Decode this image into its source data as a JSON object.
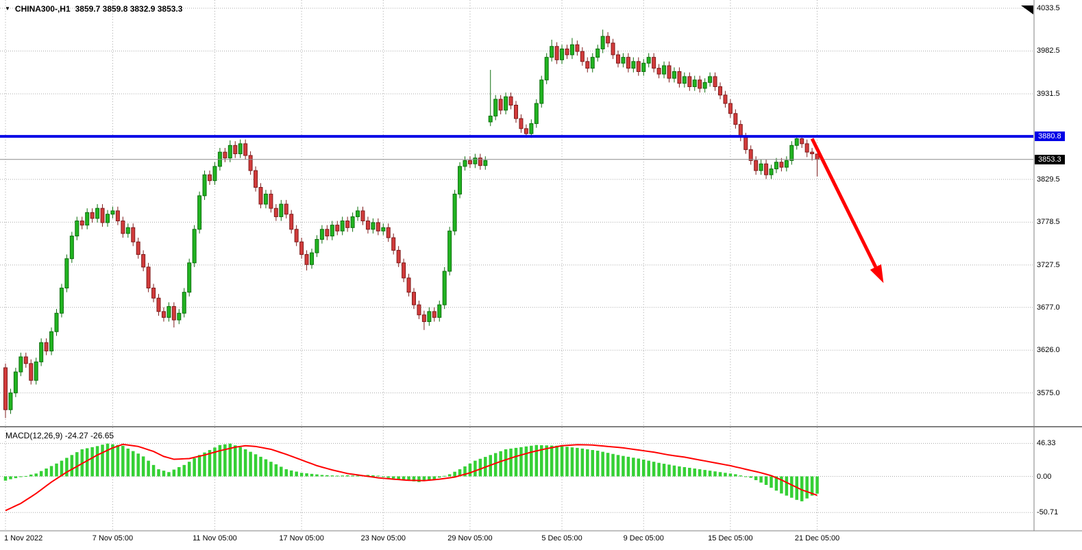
{
  "header": {
    "symbol_timeframe": "CHINA300-,H1",
    "ohlc_text": "3859.7 3859.8 3832.9 3853.3"
  },
  "colors": {
    "bull": "#21B421",
    "bull_border": "#0E6E0E",
    "bear": "#D23B3B",
    "bear_border": "#7E1C1C",
    "macd_hist": "#35D035",
    "macd_signal": "#FF0000",
    "hline": "#0000E6",
    "arrow": "#FF0000",
    "grid": "#A8A8A8",
    "separator": "#808080",
    "axis_text": "#000000"
  },
  "chart_data": {
    "type": "candlestick",
    "title": "CHINA300-,H1",
    "symbol": "CHINA300-",
    "timeframe": "H1",
    "last_ohlc": {
      "open": 3859.7,
      "high": 3859.8,
      "low": 3832.9,
      "close": 3853.3
    },
    "price_axis": [
      {
        "label": "4033.5",
        "value": 4033.5,
        "style": "grid"
      },
      {
        "label": "3982.5",
        "value": 3982.5,
        "style": "grid"
      },
      {
        "label": "3931.5",
        "value": 3931.5,
        "style": "grid"
      },
      {
        "label": "3880.8",
        "value": 3880.8,
        "style": "hline"
      },
      {
        "label": "3853.3",
        "value": 3853.3,
        "style": "bid"
      },
      {
        "label": "3829.5",
        "value": 3829.5,
        "style": "grid"
      },
      {
        "label": "3778.5",
        "value": 3778.5,
        "style": "grid"
      },
      {
        "label": "3727.5",
        "value": 3727.5,
        "style": "grid"
      },
      {
        "label": "3677.0",
        "value": 3677.0,
        "style": "grid"
      },
      {
        "label": "3626.0",
        "value": 3626.0,
        "style": "grid"
      },
      {
        "label": "3575.0",
        "value": 3575.0,
        "style": "grid"
      }
    ],
    "time_axis": [
      {
        "label": "1 Nov 2022",
        "index": 0
      },
      {
        "label": "7 Nov 05:00",
        "index": 21
      },
      {
        "label": "11 Nov 05:00",
        "index": 41
      },
      {
        "label": "17 Nov 05:00",
        "index": 58
      },
      {
        "label": "23 Nov 05:00",
        "index": 74
      },
      {
        "label": "29 Nov 05:00",
        "index": 91
      },
      {
        "label": "5 Dec 05:00",
        "index": 109
      },
      {
        "label": "9 Dec 05:00",
        "index": 125
      },
      {
        "label": "15 Dec 05:00",
        "index": 142
      },
      {
        "label": "21 Dec 05:00",
        "index": 159
      }
    ],
    "hline": {
      "value": 3880.8,
      "width": 4
    },
    "bid_line": {
      "value": 3853.3
    },
    "arrow": {
      "from": {
        "index": 158,
        "price": 3878
      },
      "to": {
        "index": 172,
        "price": 3706
      }
    },
    "candles": [
      [
        3605,
        3610,
        3545,
        3555
      ],
      [
        3555,
        3580,
        3550,
        3575
      ],
      [
        3575,
        3605,
        3570,
        3600
      ],
      [
        3600,
        3623,
        3595,
        3618
      ],
      [
        3618,
        3623,
        3605,
        3610
      ],
      [
        3610,
        3615,
        3585,
        3590
      ],
      [
        3590,
        3617,
        3585,
        3612
      ],
      [
        3612,
        3640,
        3607,
        3635
      ],
      [
        3635,
        3640,
        3620,
        3625
      ],
      [
        3625,
        3653,
        3620,
        3648
      ],
      [
        3648,
        3675,
        3643,
        3670
      ],
      [
        3670,
        3705,
        3665,
        3700
      ],
      [
        3700,
        3740,
        3695,
        3735
      ],
      [
        3735,
        3767,
        3730,
        3762
      ],
      [
        3762,
        3785,
        3757,
        3780
      ],
      [
        3780,
        3785,
        3770,
        3775
      ],
      [
        3775,
        3795,
        3770,
        3790
      ],
      [
        3790,
        3795,
        3778,
        3783
      ],
      [
        3783,
        3800,
        3778,
        3795
      ],
      [
        3795,
        3800,
        3773,
        3778
      ],
      [
        3778,
        3793,
        3773,
        3788
      ],
      [
        3788,
        3797,
        3783,
        3792
      ],
      [
        3792,
        3797,
        3775,
        3780
      ],
      [
        3780,
        3785,
        3760,
        3765
      ],
      [
        3765,
        3777,
        3760,
        3772
      ],
      [
        3772,
        3777,
        3750,
        3755
      ],
      [
        3755,
        3760,
        3735,
        3740
      ],
      [
        3740,
        3745,
        3720,
        3725
      ],
      [
        3725,
        3730,
        3695,
        3700
      ],
      [
        3700,
        3705,
        3683,
        3688
      ],
      [
        3688,
        3693,
        3667,
        3672
      ],
      [
        3672,
        3677,
        3660,
        3665
      ],
      [
        3665,
        3683,
        3660,
        3678
      ],
      [
        3678,
        3683,
        3653,
        3662
      ],
      [
        3662,
        3675,
        3657,
        3670
      ],
      [
        3670,
        3700,
        3665,
        3695
      ],
      [
        3695,
        3735,
        3690,
        3730
      ],
      [
        3730,
        3775,
        3725,
        3770
      ],
      [
        3770,
        3815,
        3765,
        3810
      ],
      [
        3810,
        3840,
        3805,
        3835
      ],
      [
        3835,
        3840,
        3823,
        3828
      ],
      [
        3828,
        3850,
        3823,
        3845
      ],
      [
        3845,
        3867,
        3840,
        3862
      ],
      [
        3862,
        3867,
        3850,
        3855
      ],
      [
        3855,
        3876,
        3850,
        3870
      ],
      [
        3870,
        3875,
        3855,
        3860
      ],
      [
        3860,
        3877,
        3855,
        3872
      ],
      [
        3872,
        3877,
        3853,
        3858
      ],
      [
        3858,
        3863,
        3835,
        3840
      ],
      [
        3840,
        3845,
        3815,
        3820
      ],
      [
        3820,
        3825,
        3795,
        3800
      ],
      [
        3800,
        3817,
        3795,
        3812
      ],
      [
        3812,
        3817,
        3790,
        3795
      ],
      [
        3795,
        3800,
        3780,
        3785
      ],
      [
        3785,
        3805,
        3780,
        3800
      ],
      [
        3800,
        3805,
        3783,
        3788
      ],
      [
        3788,
        3793,
        3765,
        3770
      ],
      [
        3770,
        3775,
        3750,
        3755
      ],
      [
        3755,
        3760,
        3735,
        3740
      ],
      [
        3740,
        3745,
        3721,
        3728
      ],
      [
        3728,
        3747,
        3723,
        3742
      ],
      [
        3742,
        3763,
        3737,
        3758
      ],
      [
        3758,
        3775,
        3753,
        3770
      ],
      [
        3770,
        3775,
        3757,
        3762
      ],
      [
        3762,
        3780,
        3757,
        3775
      ],
      [
        3775,
        3780,
        3763,
        3768
      ],
      [
        3768,
        3785,
        3763,
        3780
      ],
      [
        3780,
        3785,
        3767,
        3772
      ],
      [
        3772,
        3790,
        3767,
        3785
      ],
      [
        3785,
        3797,
        3780,
        3792
      ],
      [
        3792,
        3797,
        3775,
        3780
      ],
      [
        3780,
        3785,
        3765,
        3770
      ],
      [
        3770,
        3783,
        3765,
        3778
      ],
      [
        3778,
        3783,
        3763,
        3768
      ],
      [
        3768,
        3777,
        3763,
        3772
      ],
      [
        3772,
        3777,
        3755,
        3760
      ],
      [
        3760,
        3765,
        3740,
        3745
      ],
      [
        3745,
        3750,
        3725,
        3730
      ],
      [
        3730,
        3735,
        3707,
        3712
      ],
      [
        3712,
        3717,
        3690,
        3695
      ],
      [
        3695,
        3700,
        3675,
        3680
      ],
      [
        3680,
        3685,
        3663,
        3668
      ],
      [
        3668,
        3673,
        3650,
        3660
      ],
      [
        3660,
        3677,
        3655,
        3672
      ],
      [
        3672,
        3677,
        3660,
        3665
      ],
      [
        3665,
        3685,
        3660,
        3680
      ],
      [
        3680,
        3725,
        3675,
        3720
      ],
      [
        3720,
        3773,
        3715,
        3768
      ],
      [
        3768,
        3817,
        3763,
        3812
      ],
      [
        3812,
        3850,
        3807,
        3845
      ],
      [
        3845,
        3857,
        3840,
        3852
      ],
      [
        3852,
        3857,
        3843,
        3848
      ],
      [
        3848,
        3860,
        3843,
        3855
      ],
      [
        3855,
        3860,
        3841,
        3846
      ],
      [
        3846,
        3857,
        3841,
        3852
      ],
      [
        3898,
        3960,
        3893,
        3905
      ],
      [
        3905,
        3930,
        3900,
        3925
      ],
      [
        3925,
        3930,
        3907,
        3912
      ],
      [
        3912,
        3933,
        3907,
        3928
      ],
      [
        3928,
        3933,
        3913,
        3918
      ],
      [
        3918,
        3923,
        3897,
        3902
      ],
      [
        3902,
        3907,
        3885,
        3890
      ],
      [
        3890,
        3895,
        3879,
        3884
      ],
      [
        3884,
        3901,
        3879,
        3896
      ],
      [
        3896,
        3925,
        3891,
        3920
      ],
      [
        3920,
        3953,
        3915,
        3948
      ],
      [
        3948,
        3980,
        3943,
        3975
      ],
      [
        3975,
        3996,
        3970,
        3988
      ],
      [
        3988,
        3993,
        3967,
        3972
      ],
      [
        3972,
        3990,
        3967,
        3985
      ],
      [
        3985,
        3990,
        3973,
        3978
      ],
      [
        3978,
        3998,
        3973,
        3990
      ],
      [
        3990,
        3995,
        3977,
        3982
      ],
      [
        3982,
        3987,
        3965,
        3970
      ],
      [
        3970,
        3975,
        3957,
        3962
      ],
      [
        3962,
        3980,
        3957,
        3975
      ],
      [
        3975,
        3990,
        3970,
        3985
      ],
      [
        3985,
        4008,
        3980,
        4000
      ],
      [
        4000,
        4005,
        3987,
        3992
      ],
      [
        3992,
        3997,
        3973,
        3978
      ],
      [
        3978,
        3983,
        3963,
        3968
      ],
      [
        3968,
        3980,
        3963,
        3975
      ],
      [
        3975,
        3980,
        3957,
        3962
      ],
      [
        3962,
        3975,
        3957,
        3970
      ],
      [
        3970,
        3975,
        3953,
        3958
      ],
      [
        3958,
        3973,
        3953,
        3968
      ],
      [
        3968,
        3980,
        3963,
        3975
      ],
      [
        3975,
        3980,
        3957,
        3962
      ],
      [
        3962,
        3967,
        3950,
        3955
      ],
      [
        3955,
        3970,
        3950,
        3965
      ],
      [
        3965,
        3970,
        3945,
        3950
      ],
      [
        3950,
        3963,
        3945,
        3958
      ],
      [
        3958,
        3963,
        3939,
        3944
      ],
      [
        3944,
        3957,
        3939,
        3952
      ],
      [
        3952,
        3957,
        3935,
        3940
      ],
      [
        3940,
        3953,
        3935,
        3948
      ],
      [
        3948,
        3953,
        3933,
        3938
      ],
      [
        3938,
        3950,
        3933,
        3945
      ],
      [
        3945,
        3957,
        3940,
        3952
      ],
      [
        3952,
        3957,
        3935,
        3940
      ],
      [
        3940,
        3945,
        3925,
        3930
      ],
      [
        3930,
        3935,
        3915,
        3920
      ],
      [
        3920,
        3925,
        3903,
        3908
      ],
      [
        3908,
        3913,
        3890,
        3895
      ],
      [
        3895,
        3900,
        3875,
        3880
      ],
      [
        3880,
        3885,
        3860,
        3865
      ],
      [
        3865,
        3870,
        3847,
        3852
      ],
      [
        3852,
        3857,
        3835,
        3840
      ],
      [
        3840,
        3853,
        3835,
        3848
      ],
      [
        3848,
        3853,
        3830,
        3835
      ],
      [
        3835,
        3847,
        3830,
        3842
      ],
      [
        3842,
        3855,
        3837,
        3850
      ],
      [
        3850,
        3855,
        3839,
        3844
      ],
      [
        3844,
        3857,
        3839,
        3852
      ],
      [
        3852,
        3875,
        3847,
        3870
      ],
      [
        3870,
        3881,
        3865,
        3878
      ],
      [
        3878,
        3881,
        3867,
        3872
      ],
      [
        3872,
        3877,
        3856,
        3862
      ],
      [
        3862,
        3867,
        3852,
        3860
      ],
      [
        3859.7,
        3859.8,
        3832.9,
        3853.3
      ]
    ],
    "macd": {
      "label": "MACD(12,26,9) -24.27 -26.65",
      "fast": 12,
      "slow": 26,
      "signal_period": 9,
      "macd_value": -24.27,
      "signal_value": -26.65,
      "axis": [
        {
          "label": "46.33",
          "value": 46.33
        },
        {
          "label": "0.00",
          "value": 0
        },
        {
          "label": "-50.71",
          "value": -50.71
        }
      ],
      "histogram": [
        -6,
        -4,
        -2.5,
        -1,
        0.5,
        2.5,
        4,
        7.5,
        11,
        14.5,
        18,
        22,
        26,
        30,
        34,
        38,
        39.5,
        41,
        42.5,
        44.5,
        46,
        45,
        44,
        43,
        39,
        35.5,
        32,
        28,
        22,
        16,
        10,
        8,
        6,
        9.5,
        13,
        16,
        20.5,
        25.5,
        30,
        33.5,
        37,
        40.5,
        44,
        45,
        46,
        43.5,
        41,
        38,
        34.5,
        31,
        27.5,
        24,
        20.5,
        17,
        13.5,
        10,
        8.3,
        6.7,
        5,
        4.3,
        3.5,
        2.8,
        2,
        1.7,
        1.3,
        1,
        1.2,
        1.5,
        1.2,
        1,
        1.5,
        2,
        1.5,
        1,
        -0.5,
        -2,
        -3,
        -4,
        -5,
        -6,
        -7,
        -8,
        -6.7,
        -5.3,
        -4,
        -1.7,
        0.7,
        3,
        6.5,
        10,
        14,
        18,
        22,
        24.7,
        27.3,
        30,
        32.7,
        35.3,
        38,
        39,
        40,
        41,
        42,
        43,
        44,
        43.7,
        43.5,
        43.2,
        43,
        42.2,
        41.5,
        40.7,
        40,
        39,
        38,
        37,
        36,
        34.5,
        33,
        31.5,
        30,
        28.7,
        27.5,
        26.2,
        25,
        23.5,
        22,
        20.5,
        19,
        17.7,
        16.5,
        15.2,
        14,
        13,
        12,
        11,
        10,
        9,
        8,
        7,
        6,
        5,
        4,
        3,
        1.3,
        -0.3,
        -2,
        -5.3,
        -8.7,
        -12,
        -16,
        -20,
        -24,
        -27,
        -30,
        -33,
        -35,
        -31,
        -27,
        -24.3
      ],
      "signal": [
        -48,
        -44.7,
        -41.3,
        -38,
        -33.3,
        -28.7,
        -24,
        -18.7,
        -13.3,
        -8,
        -3.3,
        1.3,
        6,
        10,
        14,
        18,
        22,
        26,
        30,
        33.3,
        36.7,
        40,
        42.5,
        45,
        44,
        43,
        42,
        39.7,
        37.3,
        35,
        31.5,
        28,
        26,
        24,
        24.3,
        24.7,
        25,
        26.7,
        28.3,
        30,
        32,
        34,
        36,
        37.7,
        39.3,
        41,
        42,
        43,
        42.5,
        42,
        40.7,
        39.3,
        38,
        35.7,
        33.3,
        31,
        28.3,
        25.7,
        23,
        20.3,
        17.7,
        15,
        13,
        11,
        9,
        7.3,
        5.7,
        4,
        3,
        2,
        1,
        0,
        -1,
        -2,
        -2.7,
        -3.3,
        -4,
        -4.5,
        -5,
        -5.5,
        -5.7,
        -5.8,
        -6,
        -5.3,
        -4.7,
        -4,
        -3,
        -2,
        -1,
        1,
        3,
        5,
        7.7,
        10.3,
        13,
        15.7,
        18.3,
        21,
        23.3,
        25.7,
        28,
        30,
        32,
        34,
        35.7,
        37.3,
        39,
        40.3,
        41.7,
        43,
        43.5,
        44,
        44.5,
        44.3,
        44.2,
        44,
        43.3,
        42.7,
        42,
        41.3,
        40.7,
        40,
        39,
        38,
        37,
        36,
        35,
        34,
        32.7,
        31.3,
        30,
        29,
        28,
        27,
        25.7,
        24.3,
        23,
        21.7,
        20.3,
        19,
        17.7,
        16.3,
        15,
        13.3,
        11.7,
        10,
        8.3,
        6.7,
        5,
        3,
        1,
        -2,
        -5,
        -8.5,
        -12,
        -15.5,
        -19,
        -21.5,
        -24,
        -26.65
      ]
    }
  }
}
